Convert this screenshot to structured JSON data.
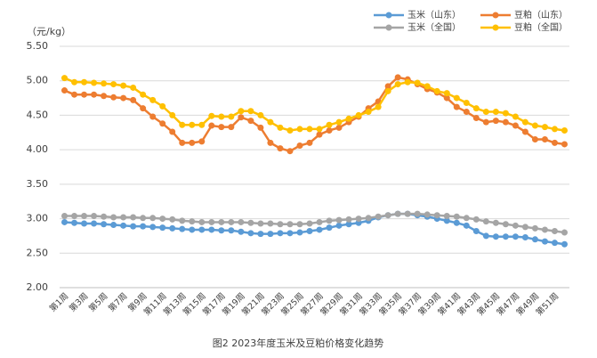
{
  "chart_data": {
    "type": "line",
    "title": "图2 2023年度玉米及豆粕价格变化趋势",
    "y_label": "（元/kg）",
    "categories": [
      "第1周",
      null,
      "第3周",
      null,
      "第5周",
      null,
      "第7周",
      null,
      "第9周",
      null,
      "第11周",
      null,
      "第13周",
      null,
      "第15周",
      null,
      "第17周",
      null,
      "第19周",
      null,
      "第21周",
      null,
      "第23周",
      null,
      "第25周",
      null,
      "第27周",
      null,
      "第29周",
      null,
      "第31周",
      null,
      "第33周",
      null,
      "第35周",
      null,
      "第37周",
      null,
      "第39周",
      null,
      "第41周",
      null,
      "第43周",
      null,
      "第45周",
      null,
      "第47周",
      null,
      "第49周",
      null,
      "第51周",
      null
    ],
    "series": [
      {
        "name": "玉米（山东）",
        "color": "#5b9bd5",
        "values": [
          2.95,
          2.94,
          2.93,
          2.93,
          2.92,
          2.91,
          2.9,
          2.89,
          2.89,
          2.88,
          2.87,
          2.86,
          2.85,
          2.84,
          2.84,
          2.84,
          2.83,
          2.83,
          2.81,
          2.79,
          2.78,
          2.78,
          2.79,
          2.79,
          2.8,
          2.82,
          2.84,
          2.87,
          2.9,
          2.92,
          2.94,
          2.97,
          3.02,
          3.05,
          3.07,
          3.07,
          3.05,
          3.03,
          3.0,
          2.97,
          2.94,
          2.9,
          2.82,
          2.75,
          2.74,
          2.74,
          2.74,
          2.73,
          2.7,
          2.67,
          2.65,
          2.63
        ]
      },
      {
        "name": "豆粕（山东）",
        "color": "#ed7d31",
        "values": [
          4.86,
          4.8,
          4.8,
          4.8,
          4.78,
          4.76,
          4.75,
          4.72,
          4.6,
          4.48,
          4.38,
          4.26,
          4.1,
          4.1,
          4.12,
          4.35,
          4.33,
          4.33,
          4.47,
          4.42,
          4.32,
          4.1,
          4.02,
          3.98,
          4.06,
          4.1,
          4.22,
          4.28,
          4.32,
          4.4,
          4.48,
          4.6,
          4.7,
          4.92,
          5.05,
          5.02,
          4.95,
          4.88,
          4.83,
          4.75,
          4.62,
          4.55,
          4.46,
          4.4,
          4.42,
          4.4,
          4.35,
          4.26,
          4.15,
          4.15,
          4.1,
          4.08
        ]
      },
      {
        "name": "玉米（全国）",
        "color": "#a5a5a5",
        "values": [
          3.04,
          3.04,
          3.04,
          3.04,
          3.03,
          3.02,
          3.02,
          3.02,
          3.01,
          3.01,
          3.0,
          2.99,
          2.97,
          2.96,
          2.95,
          2.95,
          2.95,
          2.95,
          2.95,
          2.94,
          2.93,
          2.93,
          2.92,
          2.92,
          2.92,
          2.93,
          2.95,
          2.97,
          2.98,
          2.99,
          3.0,
          3.01,
          3.03,
          3.05,
          3.07,
          3.07,
          3.07,
          3.06,
          3.05,
          3.04,
          3.03,
          3.01,
          2.99,
          2.96,
          2.94,
          2.92,
          2.9,
          2.88,
          2.86,
          2.84,
          2.82,
          2.8
        ]
      },
      {
        "name": "豆粕（全国）",
        "color": "#ffc000",
        "values": [
          5.04,
          4.98,
          4.98,
          4.97,
          4.96,
          4.95,
          4.93,
          4.9,
          4.8,
          4.72,
          4.63,
          4.5,
          4.36,
          4.36,
          4.36,
          4.49,
          4.48,
          4.48,
          4.56,
          4.56,
          4.5,
          4.4,
          4.32,
          4.28,
          4.3,
          4.3,
          4.3,
          4.36,
          4.4,
          4.45,
          4.5,
          4.55,
          4.62,
          4.85,
          4.95,
          4.98,
          4.97,
          4.92,
          4.85,
          4.82,
          4.75,
          4.68,
          4.6,
          4.55,
          4.55,
          4.53,
          4.48,
          4.4,
          4.35,
          4.33,
          4.3,
          4.28
        ]
      }
    ],
    "ylim": [
      2,
      5.5
    ],
    "yticks": [
      {
        "value": 2,
        "label": "2.00"
      },
      {
        "value": 2.5,
        "label": "2.50"
      },
      {
        "value": 3,
        "label": "3.00"
      },
      {
        "value": 3.5,
        "label": "3.50"
      },
      {
        "value": 4,
        "label": "4.00"
      },
      {
        "value": 4.5,
        "label": "4.50"
      },
      {
        "value": 5,
        "label": "5.00"
      },
      {
        "value": 5.5,
        "label": "5.50"
      }
    ],
    "grid": true,
    "legend": "top-right"
  }
}
